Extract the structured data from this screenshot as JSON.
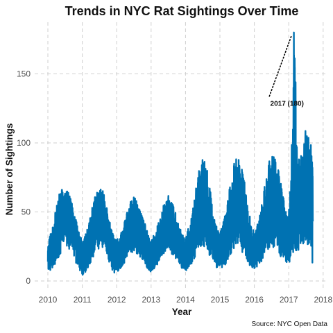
{
  "chart_data": {
    "type": "line",
    "title": "Trends in NYC Rat Sightings Over Time",
    "xlabel": "Year",
    "ylabel": "Number of Sightings",
    "caption": "Source: NYC Open Data",
    "xlim": [
      2010,
      2018
    ],
    "ylim": [
      0,
      185
    ],
    "x_ticks": [
      2010,
      2011,
      2012,
      2013,
      2014,
      2015,
      2016,
      2017,
      2018
    ],
    "y_ticks": [
      0,
      50,
      100,
      150
    ],
    "grid": true,
    "legend": "none",
    "series": [
      {
        "color": "#0072B2",
        "x": [
          2010.0,
          2010.08,
          2010.17,
          2010.25,
          2010.33,
          2010.42,
          2010.5,
          2010.58,
          2010.67,
          2010.75,
          2010.83,
          2010.92,
          2011.0,
          2011.08,
          2011.17,
          2011.25,
          2011.33,
          2011.42,
          2011.5,
          2011.58,
          2011.67,
          2011.75,
          2011.83,
          2011.92,
          2012.0,
          2012.08,
          2012.17,
          2012.25,
          2012.33,
          2012.42,
          2012.5,
          2012.58,
          2012.67,
          2012.75,
          2012.83,
          2012.92,
          2013.0,
          2013.08,
          2013.17,
          2013.25,
          2013.33,
          2013.42,
          2013.5,
          2013.58,
          2013.67,
          2013.75,
          2013.83,
          2013.92,
          2014.0,
          2014.08,
          2014.17,
          2014.25,
          2014.33,
          2014.42,
          2014.5,
          2014.58,
          2014.67,
          2014.75,
          2014.83,
          2014.92,
          2015.0,
          2015.08,
          2015.17,
          2015.25,
          2015.33,
          2015.42,
          2015.5,
          2015.58,
          2015.67,
          2015.75,
          2015.83,
          2015.92,
          2016.0,
          2016.08,
          2016.17,
          2016.25,
          2016.33,
          2016.42,
          2016.5,
          2016.58,
          2016.67,
          2016.75,
          2016.83,
          2016.92,
          2017.0,
          2017.08,
          2017.17,
          2017.25,
          2017.33,
          2017.42,
          2017.5,
          2017.58,
          2017.67,
          2017.7
        ],
        "y": [
          14,
          20,
          24,
          32,
          40,
          46,
          50,
          48,
          45,
          38,
          28,
          22,
          18,
          20,
          24,
          30,
          38,
          45,
          48,
          50,
          42,
          34,
          26,
          20,
          18,
          20,
          22,
          28,
          34,
          38,
          40,
          38,
          34,
          30,
          26,
          20,
          18,
          20,
          24,
          28,
          34,
          38,
          40,
          38,
          34,
          28,
          24,
          20,
          18,
          22,
          26,
          34,
          42,
          50,
          52,
          50,
          44,
          36,
          28,
          22,
          20,
          24,
          28,
          36,
          44,
          50,
          54,
          52,
          46,
          38,
          30,
          24,
          20,
          24,
          28,
          34,
          42,
          48,
          52,
          52,
          48,
          42,
          36,
          30,
          28,
          40,
          60,
          48,
          50,
          58,
          64,
          60,
          58,
          30
        ],
        "range_low": [
          4,
          8,
          10,
          14,
          18,
          22,
          26,
          24,
          22,
          18,
          12,
          8,
          4,
          6,
          10,
          14,
          18,
          22,
          24,
          24,
          20,
          16,
          10,
          6,
          6,
          8,
          10,
          14,
          18,
          20,
          22,
          20,
          18,
          14,
          12,
          8,
          6,
          8,
          10,
          14,
          18,
          20,
          22,
          20,
          18,
          14,
          12,
          8,
          6,
          8,
          12,
          16,
          20,
          24,
          26,
          24,
          20,
          16,
          12,
          8,
          8,
          10,
          12,
          16,
          20,
          24,
          26,
          24,
          20,
          16,
          12,
          10,
          8,
          10,
          12,
          16,
          20,
          22,
          24,
          24,
          22,
          18,
          16,
          12,
          12,
          16,
          22,
          20,
          22,
          24,
          26,
          24,
          22,
          4
        ],
        "range_high": [
          28,
          36,
          44,
          56,
          64,
          68,
          68,
          66,
          62,
          54,
          44,
          34,
          30,
          34,
          40,
          50,
          60,
          66,
          68,
          68,
          60,
          50,
          40,
          32,
          30,
          34,
          38,
          46,
          54,
          60,
          62,
          60,
          54,
          48,
          42,
          34,
          30,
          34,
          40,
          46,
          54,
          60,
          62,
          60,
          54,
          46,
          40,
          34,
          32,
          38,
          46,
          60,
          74,
          86,
          90,
          88,
          76,
          62,
          48,
          38,
          36,
          42,
          50,
          64,
          78,
          88,
          92,
          90,
          80,
          66,
          52,
          42,
          36,
          42,
          50,
          62,
          74,
          86,
          92,
          92,
          86,
          76,
          64,
          52,
          50,
          100,
          180,
          90,
          95,
          102,
          112,
          106,
          100,
          82
        ]
      }
    ],
    "annotations": [
      {
        "label": "2017 (180)",
        "x": 2017.15,
        "y": 180,
        "text_x": 2016.95,
        "text_y": 129
      }
    ]
  }
}
